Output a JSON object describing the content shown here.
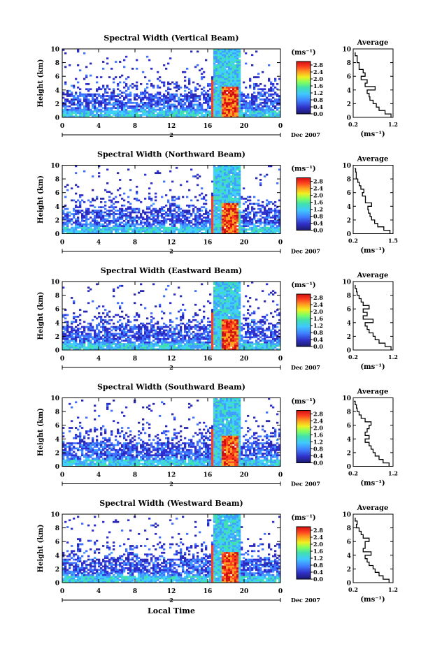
{
  "figure": {
    "xlabel_bottom": "Local Time",
    "date_label": "Dec 2007",
    "day_label": "2",
    "colorbar_unit": "(ms⁻¹)",
    "avg_title": "Average",
    "avg_xlabel": "(ms⁻¹)",
    "ylabel": "Height (km)"
  },
  "chart_data": [
    {
      "type": "heatmap",
      "title": "Spectral Width (Vertical Beam)",
      "x_ticks": [
        "0",
        "4",
        "8",
        "12",
        "16",
        "20",
        "0"
      ],
      "y_ticks": [
        "0",
        "2",
        "4",
        "6",
        "8",
        "10"
      ],
      "xlim": [
        0,
        24
      ],
      "ylim": [
        0,
        10
      ],
      "colorbar": {
        "ticks": [
          "0.0",
          "0.4",
          "0.8",
          "1.2",
          "1.6",
          "2.0",
          "2.4",
          "2.8"
        ],
        "range": [
          0,
          3.0
        ]
      },
      "average_profile": {
        "x_ticks": [
          "0.2",
          "1.2"
        ],
        "xlim": [
          0.2,
          1.2
        ],
        "y_ticks": [
          "0",
          "2",
          "4",
          "6",
          "8",
          "10"
        ],
        "height": [
          0,
          0.5,
          1,
          1.5,
          2,
          2.5,
          3,
          3.5,
          4,
          4.5,
          5,
          5.5,
          6,
          6.5,
          7,
          7.5,
          8,
          8.5,
          9,
          9.5
        ],
        "value": [
          1.15,
          1.0,
          0.85,
          0.78,
          0.7,
          0.62,
          0.6,
          0.55,
          0.75,
          0.5,
          0.55,
          0.4,
          0.5,
          0.45,
          0.35,
          0.35,
          0.3,
          0.3,
          0.25,
          0.25
        ]
      }
    },
    {
      "type": "heatmap",
      "title": "Spectral Width (Northward Beam)",
      "x_ticks": [
        "0",
        "4",
        "8",
        "12",
        "16",
        "20",
        "0"
      ],
      "y_ticks": [
        "0",
        "2",
        "4",
        "6",
        "8",
        "10"
      ],
      "xlim": [
        0,
        24
      ],
      "ylim": [
        0,
        10
      ],
      "colorbar": {
        "ticks": [
          "0.0",
          "0.4",
          "0.8",
          "1.2",
          "1.6",
          "2.0",
          "2.4",
          "2.8"
        ],
        "range": [
          0,
          3.0
        ]
      },
      "average_profile": {
        "x_ticks": [
          "0.2",
          "1.5"
        ],
        "xlim": [
          0.2,
          1.5
        ],
        "y_ticks": [
          "0",
          "2",
          "4",
          "6",
          "8",
          "10"
        ],
        "height": [
          0,
          0.5,
          1,
          1.5,
          2,
          2.5,
          3,
          3.5,
          4,
          4.5,
          5,
          5.5,
          6,
          6.5,
          7,
          7.5,
          8,
          8.5,
          9,
          9.5
        ],
        "value": [
          1.4,
          1.2,
          1.0,
          0.9,
          0.8,
          0.75,
          0.7,
          0.68,
          0.8,
          0.6,
          0.6,
          0.5,
          0.55,
          0.45,
          0.4,
          0.35,
          0.3,
          0.3,
          0.28,
          0.25
        ]
      }
    },
    {
      "type": "heatmap",
      "title": "Spectral Width (Eastward Beam)",
      "x_ticks": [
        "0",
        "4",
        "8",
        "12",
        "16",
        "20",
        "0"
      ],
      "y_ticks": [
        "0",
        "2",
        "4",
        "6",
        "8",
        "10"
      ],
      "xlim": [
        0,
        24
      ],
      "ylim": [
        0,
        10
      ],
      "colorbar": {
        "ticks": [
          "0.0",
          "0.4",
          "0.8",
          "1.2",
          "1.6",
          "2.0",
          "2.4",
          "2.8"
        ],
        "range": [
          0,
          3.0
        ]
      },
      "average_profile": {
        "x_ticks": [
          "0.2",
          "1.2"
        ],
        "xlim": [
          0.2,
          1.2
        ],
        "y_ticks": [
          "0",
          "2",
          "4",
          "6",
          "8",
          "10"
        ],
        "height": [
          0,
          0.5,
          1,
          1.5,
          2,
          2.5,
          3,
          3.5,
          4,
          4.5,
          5,
          5.5,
          6,
          6.5,
          7,
          7.5,
          8,
          8.5,
          9,
          9.5
        ],
        "value": [
          1.15,
          1.0,
          0.85,
          0.75,
          0.7,
          0.6,
          0.55,
          0.5,
          0.7,
          0.45,
          0.55,
          0.45,
          0.6,
          0.45,
          0.4,
          0.35,
          0.3,
          0.28,
          0.25,
          0.25
        ]
      }
    },
    {
      "type": "heatmap",
      "title": "Spectral Width (Southward Beam)",
      "x_ticks": [
        "0",
        "4",
        "8",
        "12",
        "16",
        "20",
        "0"
      ],
      "y_ticks": [
        "0",
        "2",
        "4",
        "6",
        "8",
        "10"
      ],
      "xlim": [
        0,
        24
      ],
      "ylim": [
        0,
        10
      ],
      "colorbar": {
        "ticks": [
          "0.0",
          "0.4",
          "0.8",
          "1.2",
          "1.6",
          "2.0",
          "2.4",
          "2.8"
        ],
        "range": [
          0,
          3.0
        ]
      },
      "average_profile": {
        "x_ticks": [
          "0.2",
          "1.2"
        ],
        "xlim": [
          0.2,
          1.2
        ],
        "y_ticks": [
          "0",
          "2",
          "4",
          "6",
          "8",
          "10"
        ],
        "height": [
          0,
          0.5,
          1,
          1.5,
          2,
          2.5,
          3,
          3.5,
          4,
          4.5,
          5,
          5.5,
          6,
          6.5,
          7,
          7.5,
          8,
          8.5,
          9,
          9.5
        ],
        "value": [
          1.1,
          0.95,
          0.85,
          0.75,
          0.7,
          0.65,
          0.6,
          0.5,
          0.6,
          0.5,
          0.55,
          0.6,
          0.65,
          0.5,
          0.4,
          0.35,
          0.3,
          0.28,
          0.25,
          0.22
        ]
      }
    },
    {
      "type": "heatmap",
      "title": "Spectral Width (Westward Beam)",
      "x_ticks": [
        "0",
        "4",
        "8",
        "12",
        "16",
        "20",
        "0"
      ],
      "y_ticks": [
        "0",
        "2",
        "4",
        "6",
        "8",
        "10"
      ],
      "xlim": [
        0,
        24
      ],
      "ylim": [
        0,
        10
      ],
      "colorbar": {
        "ticks": [
          "0.0",
          "0.4",
          "0.8",
          "1.2",
          "1.6",
          "2.0",
          "2.4",
          "2.8"
        ],
        "range": [
          0,
          3.0
        ]
      },
      "average_profile": {
        "x_ticks": [
          "0.2",
          "1.2"
        ],
        "xlim": [
          0.2,
          1.2
        ],
        "y_ticks": [
          "0",
          "2",
          "4",
          "6",
          "8",
          "10"
        ],
        "height": [
          0,
          0.5,
          1,
          1.5,
          2,
          2.5,
          3,
          3.5,
          4,
          4.5,
          5,
          5.5,
          6,
          6.5,
          7,
          7.5,
          8,
          8.5,
          9,
          9.5
        ],
        "value": [
          1.1,
          0.95,
          0.85,
          0.75,
          0.7,
          0.6,
          0.55,
          0.5,
          0.65,
          0.45,
          0.5,
          0.5,
          0.6,
          0.45,
          0.4,
          0.35,
          0.28,
          0.3,
          0.25,
          0.25
        ]
      }
    }
  ]
}
